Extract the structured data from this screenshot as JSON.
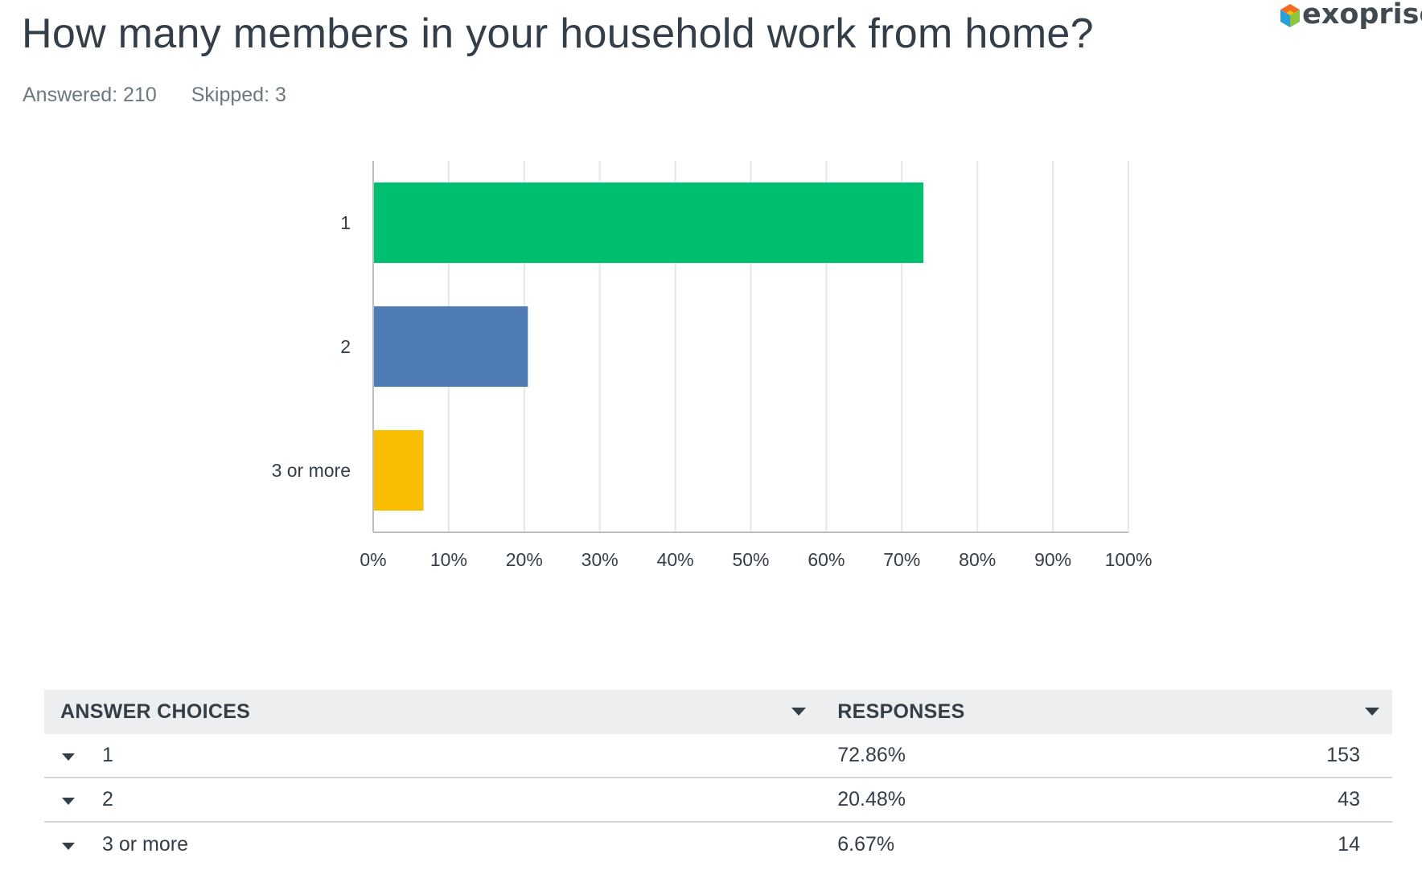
{
  "header": {
    "title": "How many members in your household work from home?",
    "answered": "Answered: 210",
    "skipped": "Skipped: 3"
  },
  "logo": {
    "text": "exoprise"
  },
  "chart_data": {
    "type": "bar",
    "orientation": "horizontal",
    "categories": [
      "1",
      "2",
      "3 or more"
    ],
    "values": [
      72.86,
      20.48,
      6.67
    ],
    "colors": [
      "#00bf6f",
      "#507cb6",
      "#f9be00"
    ],
    "xlim": [
      0,
      100
    ],
    "xticks": [
      "0%",
      "10%",
      "20%",
      "30%",
      "40%",
      "50%",
      "60%",
      "70%",
      "80%",
      "90%",
      "100%"
    ],
    "grid": true
  },
  "table": {
    "headers": {
      "choices": "ANSWER CHOICES",
      "responses": "RESPONSES"
    },
    "rows": [
      {
        "choice": "1",
        "percent": "72.86%",
        "count": "153"
      },
      {
        "choice": "2",
        "percent": "20.48%",
        "count": "43"
      },
      {
        "choice": "3 or more",
        "percent": "6.67%",
        "count": "14"
      }
    ]
  },
  "colors": {
    "text": "#333e48",
    "muted": "#6b787f",
    "header_bg": "#eceeef"
  }
}
